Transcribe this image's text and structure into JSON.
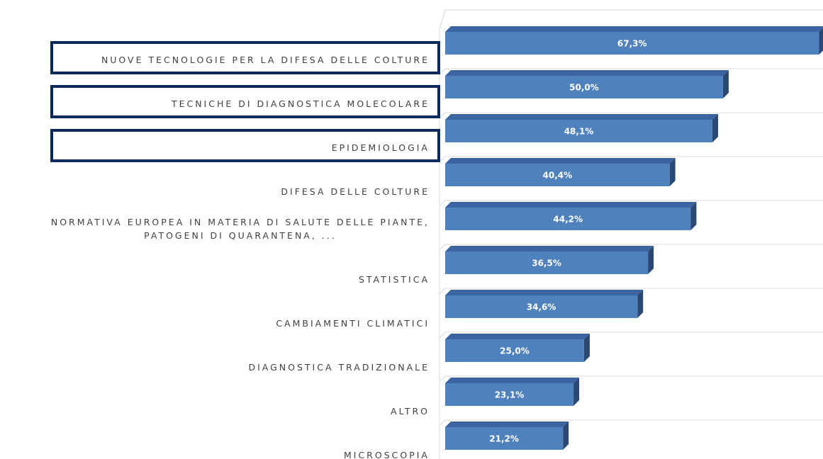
{
  "chart_data": {
    "type": "bar3d",
    "categories": [
      "NUOVE TECNOLOGIE PER LA DIFESA DELLE COLTURE",
      "TECNICHE DI DIAGNOSTICA MOLECOLARE",
      "EPIDEMIOLOGIA",
      "DIFESA DELLE COLTURE",
      "NORMATIVA EUROPEA IN MATERIA DI SALUTE DELLE PIANTE,\nPATOGENI DI QUARANTENA, ...",
      "STATISTICA",
      "CAMBIAMENTI CLIMATICI",
      "DIAGNOSTICA TRADIZIONALE",
      "ALTRO",
      "MICROSCOPIA"
    ],
    "values": [
      67.3,
      50.0,
      48.1,
      40.4,
      44.2,
      36.5,
      34.6,
      25.0,
      23.1,
      21.2
    ],
    "value_labels": [
      "67,3%",
      "50,0%",
      "48,1%",
      "40,4%",
      "44,2%",
      "36,5%",
      "34,6%",
      "25,0%",
      "23,1%",
      "21,2%"
    ],
    "color": "#4f81bd",
    "xlim": [
      0,
      68
    ],
    "highlighted": [
      true,
      true,
      true,
      false,
      false,
      false,
      false,
      false,
      false,
      false
    ],
    "highlight_color": "#0d2a5c"
  }
}
